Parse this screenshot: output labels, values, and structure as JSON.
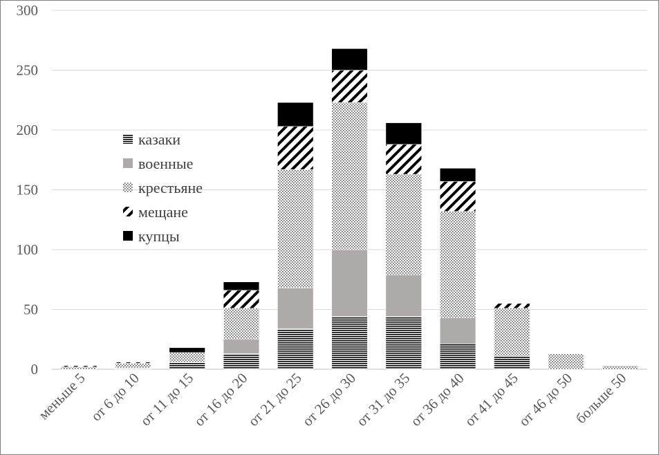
{
  "chart_data": {
    "type": "bar",
    "stacked": true,
    "title": "",
    "xlabel": "",
    "ylabel": "",
    "ylim": [
      0,
      300
    ],
    "yticks": [
      0,
      50,
      100,
      150,
      200,
      250,
      300
    ],
    "grid": true,
    "legend_position": "left-center",
    "categories": [
      "меньше 5",
      "от 6 до 10",
      "от 11 до 15",
      "от 16 до 20",
      "от 21 до 25",
      "от 26 до 30",
      "от 31 до 35",
      "от 36 до 40",
      "от 41 до 45",
      "от 46 до 50",
      "больше 50"
    ],
    "series": [
      {
        "name": "казаки",
        "pattern": "hlines",
        "values": [
          0,
          1,
          6,
          13,
          34,
          44,
          44,
          21,
          11,
          0,
          0
        ]
      },
      {
        "name": "военные",
        "pattern": "gray",
        "values": [
          0,
          0,
          0,
          12,
          34,
          56,
          35,
          22,
          0,
          0,
          0
        ]
      },
      {
        "name": "крестьяне",
        "pattern": "dots",
        "values": [
          2,
          4,
          8,
          26,
          99,
          123,
          84,
          89,
          40,
          13,
          3
        ]
      },
      {
        "name": "мещане",
        "pattern": "diagonal",
        "values": [
          1,
          1,
          0,
          15,
          36,
          27,
          25,
          25,
          4,
          0,
          0
        ]
      },
      {
        "name": "купцы",
        "pattern": "black",
        "values": [
          0,
          0,
          4,
          7,
          20,
          18,
          18,
          11,
          0,
          0,
          0
        ]
      }
    ]
  }
}
